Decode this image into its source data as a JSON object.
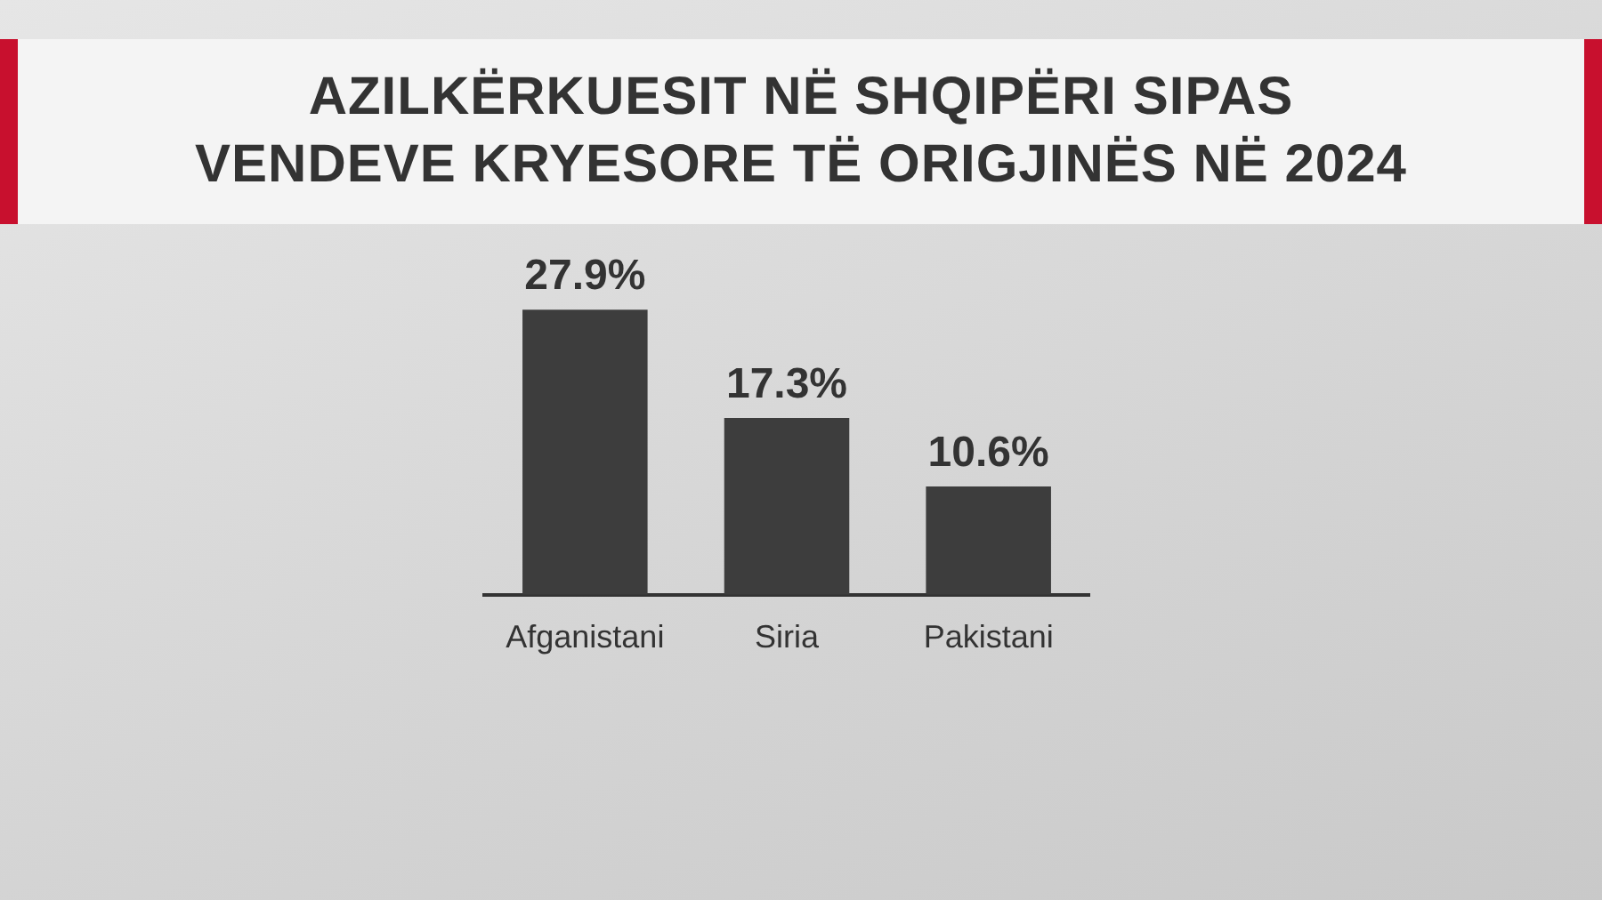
{
  "chart_data": {
    "type": "bar",
    "title": "AZILKËRKUESIT NË SHQIPËRI SIPAS VENDEVE KRYESORE TË ORIGJINËS NË 2024",
    "categories": [
      "Afganistani",
      "Siria",
      "Pakistani"
    ],
    "values": [
      27.9,
      17.3,
      10.6
    ],
    "color": "#3d3d3d",
    "value_labels": [
      "27.9%",
      "17.3%",
      "10.6%"
    ]
  }
}
